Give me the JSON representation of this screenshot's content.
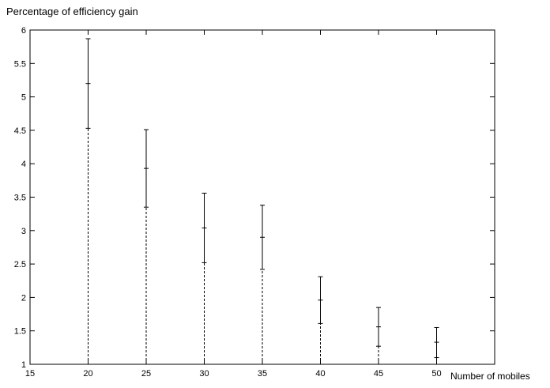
{
  "chart_data": {
    "type": "scatter",
    "title": "",
    "ylabel": "Percentage of efficiency gain",
    "xlabel": "Number of mobiles",
    "xlim": [
      15,
      55
    ],
    "ylim": [
      1,
      6
    ],
    "xticks": [
      "15",
      "20",
      "25",
      "30",
      "35",
      "40",
      "45",
      "50"
    ],
    "yticks": [
      "1",
      "1.5",
      "2",
      "2.5",
      "3",
      "3.5",
      "4",
      "4.5",
      "5",
      "5.5",
      "6"
    ],
    "grid": false,
    "legend": "none",
    "series": [
      {
        "x": [
          20,
          25,
          30,
          35,
          40,
          45,
          50
        ],
        "y": [
          5.2,
          3.93,
          3.04,
          2.9,
          1.96,
          1.56,
          1.33
        ],
        "err_low": [
          4.53,
          3.35,
          2.52,
          2.42,
          1.61,
          1.27,
          1.1
        ],
        "err_high": [
          5.87,
          4.51,
          3.56,
          3.38,
          2.31,
          1.85,
          1.55
        ]
      }
    ]
  }
}
